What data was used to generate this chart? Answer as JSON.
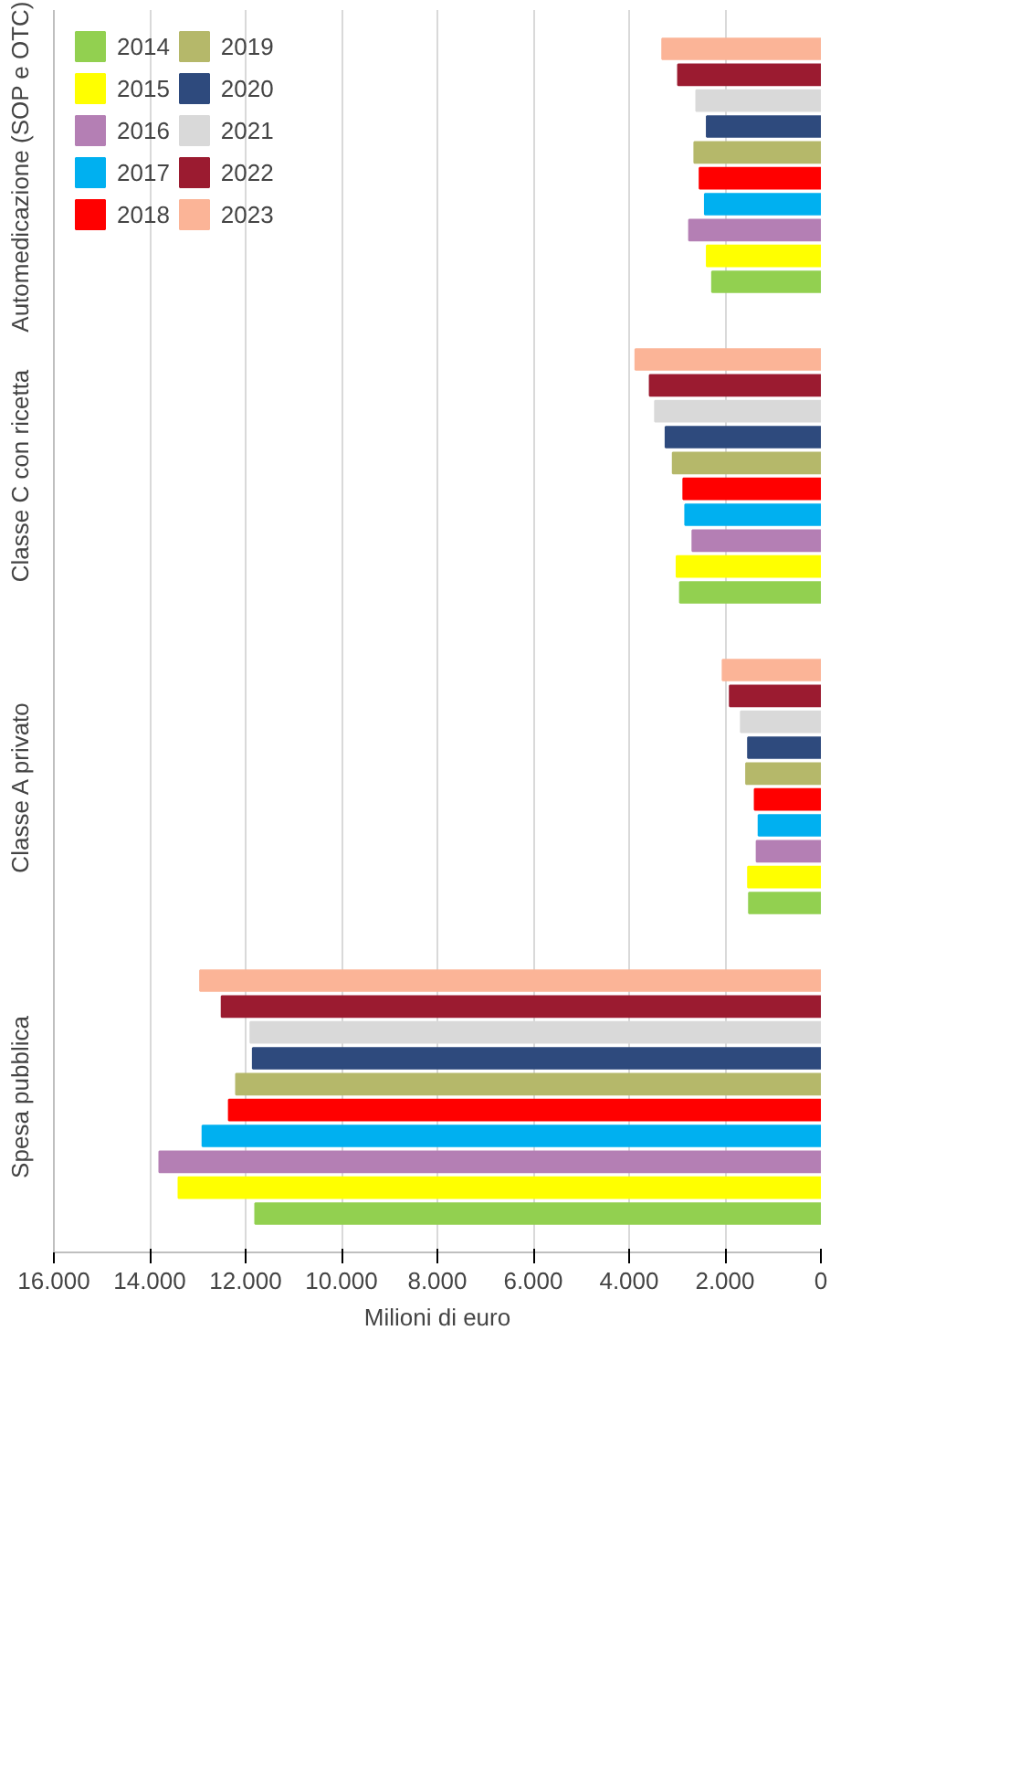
{
  "chart_data": {
    "type": "bar",
    "orientation": "horizontal",
    "xlabel": "Milioni di euro",
    "categories": [
      "Automedicazione (SOP e OTC)",
      "Classe C con ricetta",
      "Classe A privato",
      "Spesa pubblica"
    ],
    "series": [
      {
        "name": "2014",
        "color": "#92d050",
        "values": [
          2270,
          2940,
          1500,
          11800
        ]
      },
      {
        "name": "2015",
        "color": "#ffff00",
        "values": [
          2380,
          3010,
          1520,
          13400
        ]
      },
      {
        "name": "2016",
        "color": "#b47fb4",
        "values": [
          2750,
          2680,
          1340,
          13800
        ]
      },
      {
        "name": "2017",
        "color": "#00b0f0",
        "values": [
          2420,
          2830,
          1300,
          12900
        ]
      },
      {
        "name": "2018",
        "color": "#ff0000",
        "values": [
          2530,
          2870,
          1380,
          12350
        ]
      },
      {
        "name": "2019",
        "color": "#b5b86a",
        "values": [
          2640,
          3090,
          1560,
          12200
        ]
      },
      {
        "name": "2020",
        "color": "#2e4a7d",
        "values": [
          2380,
          3240,
          1520,
          11850
        ]
      },
      {
        "name": "2021",
        "color": "#d9d9d9",
        "values": [
          2600,
          3460,
          1670,
          11900
        ]
      },
      {
        "name": "2022",
        "color": "#9b1b30",
        "values": [
          2980,
          3570,
          1900,
          12500
        ]
      },
      {
        "name": "2023",
        "color": "#fbb497",
        "values": [
          3310,
          3870,
          2050,
          12950
        ]
      }
    ],
    "xlim": [
      16000,
      0
    ],
    "xticks": [
      {
        "value": 16000,
        "label": "16.000"
      },
      {
        "value": 14000,
        "label": "14.000"
      },
      {
        "value": 12000,
        "label": "12.000"
      },
      {
        "value": 10000,
        "label": "10.000"
      },
      {
        "value": 8000,
        "label": "8.000"
      },
      {
        "value": 6000,
        "label": "6.000"
      },
      {
        "value": 4000,
        "label": "4.000"
      },
      {
        "value": 2000,
        "label": "2.000"
      },
      0
    ],
    "grid": "x",
    "legend": "top left"
  }
}
